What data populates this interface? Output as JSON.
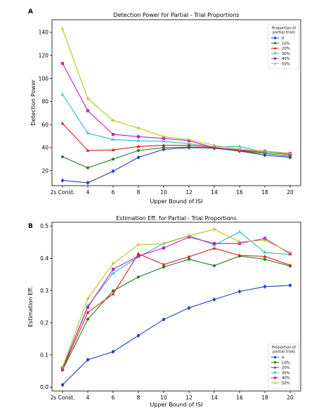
{
  "colors": {
    "0": "#1f3fbf",
    "10%": "#1f7f1f",
    "20%": "#e41a1c",
    "30%": "#1fbfbf",
    "40%": "#bf1fbf",
    "50%": "#bfbf1f"
  },
  "legend": {
    "title_line1": "Proportion of",
    "title_line2": "partial trials"
  },
  "chart_data": [
    {
      "panel_label": "A",
      "type": "line",
      "title": "Detection Power for Partial - Trial Proportions",
      "xlabel": "Upper Bound of ISI",
      "ylabel": "Detection Power",
      "categories": [
        "2s Const.",
        "4",
        "6",
        "8",
        "10",
        "12",
        "14",
        "16",
        "18",
        "20"
      ],
      "yticks": [
        20,
        40,
        60,
        80,
        100,
        120,
        140
      ],
      "ylim": [
        7,
        151
      ],
      "legend_position": "top-right",
      "series": [
        {
          "name": "0",
          "marker": "diamond",
          "values": [
            11.5,
            9.5,
            19.5,
            31.5,
            38.5,
            40,
            39.5,
            37,
            33.5,
            31.5
          ]
        },
        {
          "name": "10%",
          "marker": "circle",
          "values": [
            32,
            22.5,
            30,
            37.5,
            40,
            40.5,
            39.5,
            37,
            35,
            32.5
          ]
        },
        {
          "name": "20%",
          "marker": "triangle",
          "values": [
            61,
            37.5,
            38,
            41,
            42,
            42,
            40,
            37.5,
            36,
            34
          ]
        },
        {
          "name": "30%",
          "marker": "tri",
          "values": [
            86,
            52.5,
            47,
            46,
            45.5,
            43.5,
            40.5,
            41,
            36,
            34.5
          ]
        },
        {
          "name": "40%",
          "marker": "square",
          "values": [
            113,
            72,
            51.5,
            49.5,
            48,
            46,
            40,
            38,
            37,
            35
          ]
        },
        {
          "name": "50%",
          "marker": "plus",
          "values": [
            143,
            82.5,
            63.5,
            57,
            49.5,
            47,
            42,
            38.5,
            37,
            35
          ]
        }
      ]
    },
    {
      "panel_label": "B",
      "type": "line",
      "title": "Estimation Eff. for Partial - Trial Proportions",
      "xlabel": "Upper Bound of ISI",
      "ylabel": "Estimation Eff.",
      "categories": [
        "2s Const.",
        "4",
        "6",
        "8",
        "10",
        "12",
        "14",
        "16",
        "18",
        "20"
      ],
      "yticks": [
        0.0,
        0.1,
        0.2,
        0.3,
        0.4,
        0.5
      ],
      "ylim": [
        -0.012,
        0.512
      ],
      "legend_position": "lower-right",
      "series": [
        {
          "name": "0",
          "marker": "diamond",
          "values": [
            0.007,
            0.085,
            0.11,
            0.16,
            0.21,
            0.246,
            0.272,
            0.297,
            0.312,
            0.316
          ]
        },
        {
          "name": "10%",
          "marker": "circle",
          "values": [
            0.053,
            0.211,
            0.299,
            0.342,
            0.373,
            0.397,
            0.377,
            0.407,
            0.397,
            0.376
          ]
        },
        {
          "name": "20%",
          "marker": "triangle",
          "values": [
            0.056,
            0.232,
            0.289,
            0.414,
            0.381,
            0.405,
            0.431,
            0.409,
            0.406,
            0.379
          ]
        },
        {
          "name": "30%",
          "marker": "tri",
          "values": [
            0.058,
            0.252,
            0.354,
            0.404,
            0.446,
            0.471,
            0.441,
            0.482,
            0.418,
            0.412
          ]
        },
        {
          "name": "40%",
          "marker": "square",
          "values": [
            0.06,
            0.248,
            0.366,
            0.407,
            0.432,
            0.466,
            0.446,
            0.446,
            0.462,
            0.414
          ]
        },
        {
          "name": "50%",
          "marker": "plus",
          "values": [
            0.062,
            0.275,
            0.384,
            0.442,
            0.445,
            0.47,
            0.49,
            0.451,
            0.456,
            0.418
          ]
        }
      ]
    }
  ]
}
